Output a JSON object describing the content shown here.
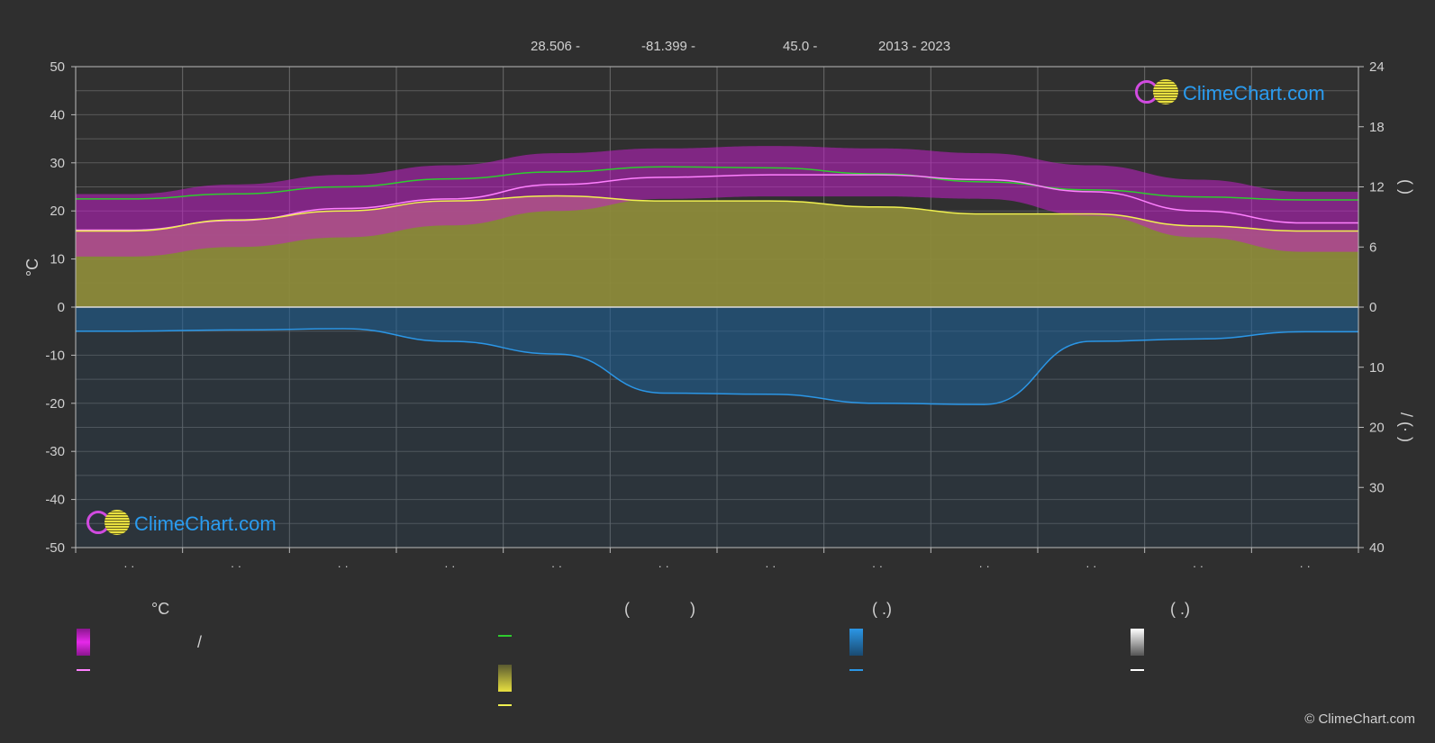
{
  "header": {
    "lat": "28.506 -",
    "lon": "-81.399 -",
    "elev": "45.0 -",
    "years": "2013 - 2023"
  },
  "logo_text": "ClimeChart.com",
  "copyright": "© ClimeChart.com",
  "legend": {
    "col1_title": "°C",
    "col1_slash": "/",
    "col2_title_open": "(",
    "col2_title_close": ")",
    "col3_title": "(   .)",
    "col4_title": "(   .)"
  },
  "colors": {
    "background": "#2f2f2f",
    "temp_range": "#c21fc8",
    "temp_mean": "#ff80ff",
    "daylight": "#2ecc2e",
    "sunshine": "#e8e040",
    "sunshine_line": "#f0f050",
    "rain": "#1e6aa8",
    "rain_line": "#2b96e6",
    "snow": "#ffffff",
    "logo": "#2a9cf0"
  },
  "chart_data": {
    "type": "area",
    "x_ticks": [
      "· ·",
      "· ·",
      "· ·",
      "· ·",
      "· ·",
      "· ·",
      "· ·",
      "· ·",
      "· ·",
      "· ·",
      "· ·",
      "· ·"
    ],
    "y_left": {
      "label": "°C",
      "ticks": [
        50,
        40,
        30,
        20,
        10,
        0,
        -10,
        -20,
        -30,
        -40,
        -50
      ],
      "ylim": [
        -50,
        50
      ]
    },
    "y_right_top": {
      "label": "(   )",
      "ticks": [
        24,
        18,
        12,
        6,
        0
      ],
      "ylim": [
        0,
        24
      ]
    },
    "y_right_bottom": {
      "label": "/ (· )",
      "ticks": [
        0,
        10,
        20,
        30,
        40
      ],
      "ylim": [
        0,
        40
      ]
    },
    "grid": true,
    "months": [
      1,
      2,
      3,
      4,
      5,
      6,
      7,
      8,
      9,
      10,
      11,
      12
    ],
    "series": [
      {
        "key": "daylight",
        "unit": "h",
        "values": [
          10.8,
          11.3,
          12.0,
          12.8,
          13.5,
          14.0,
          13.9,
          13.3,
          12.5,
          11.7,
          11.0,
          10.7
        ]
      },
      {
        "key": "temp_mean",
        "unit": "°C",
        "values": [
          16.0,
          18.0,
          20.5,
          22.5,
          25.5,
          27.0,
          27.5,
          27.5,
          26.5,
          24.0,
          20.0,
          17.5
        ]
      },
      {
        "key": "temp_max",
        "unit": "°C",
        "values": [
          23.5,
          25.5,
          27.5,
          29.5,
          32.0,
          33.0,
          33.5,
          33.0,
          32.0,
          29.5,
          26.5,
          24.0
        ]
      },
      {
        "key": "temp_min",
        "unit": "°C",
        "values": [
          10.5,
          12.5,
          14.5,
          17.0,
          20.0,
          22.5,
          23.0,
          23.0,
          22.5,
          19.0,
          14.5,
          11.5
        ]
      },
      {
        "key": "sunshine",
        "unit": "h",
        "values": [
          7.6,
          8.7,
          9.6,
          10.6,
          11.1,
          10.6,
          10.6,
          10.0,
          9.3,
          9.3,
          8.1,
          7.6
        ]
      },
      {
        "key": "precipitation",
        "unit": "mm/day",
        "values": [
          4.0,
          3.8,
          3.6,
          5.7,
          7.8,
          14.3,
          14.5,
          16.0,
          16.2,
          5.7,
          5.3,
          4.1
        ]
      }
    ]
  }
}
